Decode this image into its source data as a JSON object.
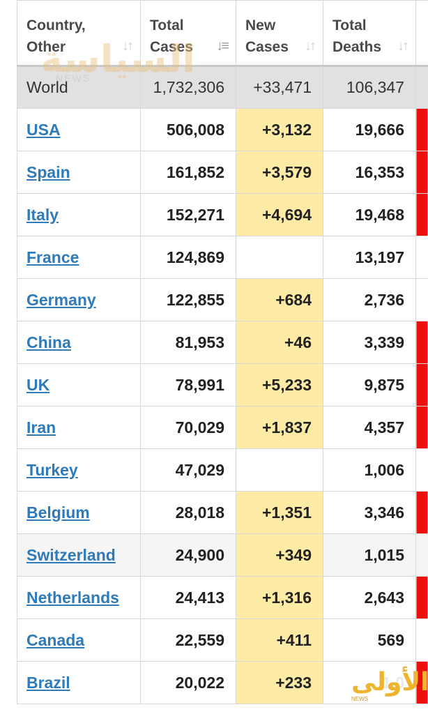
{
  "headers": [
    {
      "line1": "Country,",
      "line2": "Other",
      "sort_icon": "sort-icon"
    },
    {
      "line1": "Total",
      "line2": "Cases",
      "sort_icon": "sort-desc-icon"
    },
    {
      "line1": "New",
      "line2": "Cases",
      "sort_icon": "sort-icon"
    },
    {
      "line1": "Total",
      "line2": "Deaths",
      "sort_icon": "sort-icon"
    },
    {
      "line1": "",
      "line2": "",
      "sort_icon": ""
    }
  ],
  "world": {
    "name": "World",
    "total_cases": "1,732,306",
    "new_cases": "+33,471",
    "total_deaths": "106,347"
  },
  "rows": [
    {
      "country": "USA",
      "total_cases": "506,008",
      "new_cases": "+3,132",
      "total_deaths": "19,666"
    },
    {
      "country": "Spain",
      "total_cases": "161,852",
      "new_cases": "+3,579",
      "total_deaths": "16,353"
    },
    {
      "country": "Italy",
      "total_cases": "152,271",
      "new_cases": "+4,694",
      "total_deaths": "19,468"
    },
    {
      "country": "France",
      "total_cases": "124,869",
      "new_cases": "",
      "total_deaths": "13,197"
    },
    {
      "country": "Germany",
      "total_cases": "122,855",
      "new_cases": "+684",
      "total_deaths": "2,736"
    },
    {
      "country": "China",
      "total_cases": "81,953",
      "new_cases": "+46",
      "total_deaths": "3,339"
    },
    {
      "country": "UK",
      "total_cases": "78,991",
      "new_cases": "+5,233",
      "total_deaths": "9,875"
    },
    {
      "country": "Iran",
      "total_cases": "70,029",
      "new_cases": "+1,837",
      "total_deaths": "4,357"
    },
    {
      "country": "Turkey",
      "total_cases": "47,029",
      "new_cases": "",
      "total_deaths": "1,006"
    },
    {
      "country": "Belgium",
      "total_cases": "28,018",
      "new_cases": "+1,351",
      "total_deaths": "3,346"
    },
    {
      "country": "Switzerland",
      "total_cases": "24,900",
      "new_cases": "+349",
      "total_deaths": "1,015"
    },
    {
      "country": "Netherlands",
      "total_cases": "24,413",
      "new_cases": "+1,316",
      "total_deaths": "2,643"
    },
    {
      "country": "Canada",
      "total_cases": "22,559",
      "new_cases": "+411",
      "total_deaths": "569"
    },
    {
      "country": "Brazil",
      "total_cases": "20,022",
      "new_cases": "+233",
      "total_deaths": "1,0"
    }
  ],
  "watermarks": {
    "top_logo": "السياسة",
    "top_sub": "NEWS",
    "bottom_logo": "الأولى",
    "bottom_sub": "NEWS"
  },
  "colors": {
    "new_cases_bg": "#fdeba6",
    "new_deaths_bg": "#ee0f0f",
    "link": "#2f7ab8",
    "world_row_bg": "#e1e1e1"
  }
}
